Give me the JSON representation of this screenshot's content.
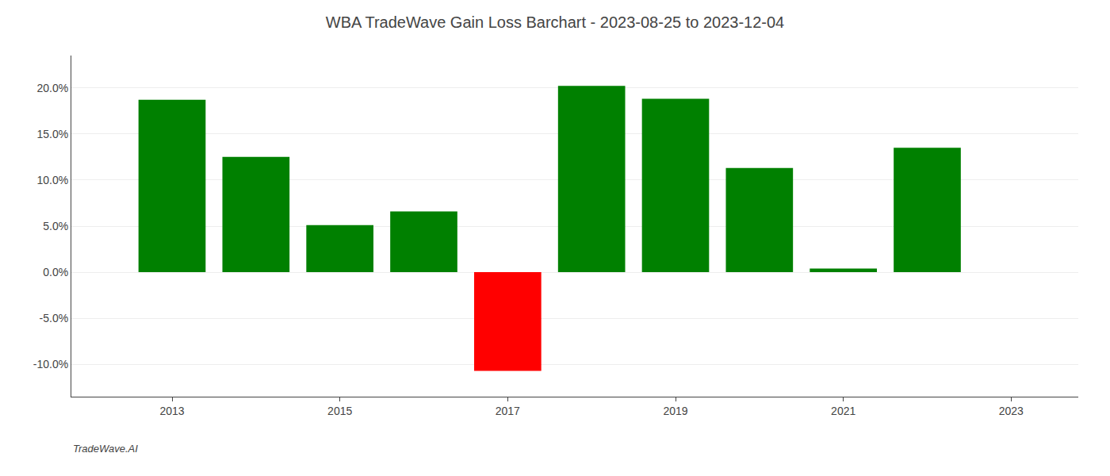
{
  "chart_data": {
    "type": "bar",
    "title": "WBA TradeWave Gain Loss Barchart - 2023-08-25 to 2023-12-04",
    "annotations": [
      "TradeWave.AI"
    ],
    "x": [
      2013,
      2014,
      2015,
      2016,
      2017,
      2018,
      2019,
      2020,
      2021,
      2022
    ],
    "values": [
      0.187,
      0.125,
      0.051,
      0.066,
      -0.107,
      0.202,
      0.188,
      0.113,
      0.004,
      0.135
    ],
    "colors": [
      "#008000",
      "#008000",
      "#008000",
      "#008000",
      "#ff0000",
      "#008000",
      "#008000",
      "#008000",
      "#008000",
      "#008000"
    ],
    "xlim": [
      2011.8,
      2023.8
    ],
    "xticks": [
      2013,
      2015,
      2017,
      2019,
      2021,
      2023
    ],
    "ylim": [
      -0.135,
      0.235
    ],
    "yticks": [
      {
        "value": -0.1,
        "label": "-10.0%"
      },
      {
        "value": -0.05,
        "label": "-5.0%"
      },
      {
        "value": 0.0,
        "label": "0.0%"
      },
      {
        "value": 0.05,
        "label": "5.0%"
      },
      {
        "value": 0.1,
        "label": "10.0%"
      },
      {
        "value": 0.15,
        "label": "15.0%"
      },
      {
        "value": 0.2,
        "label": "20.0%"
      }
    ],
    "grid": true
  }
}
